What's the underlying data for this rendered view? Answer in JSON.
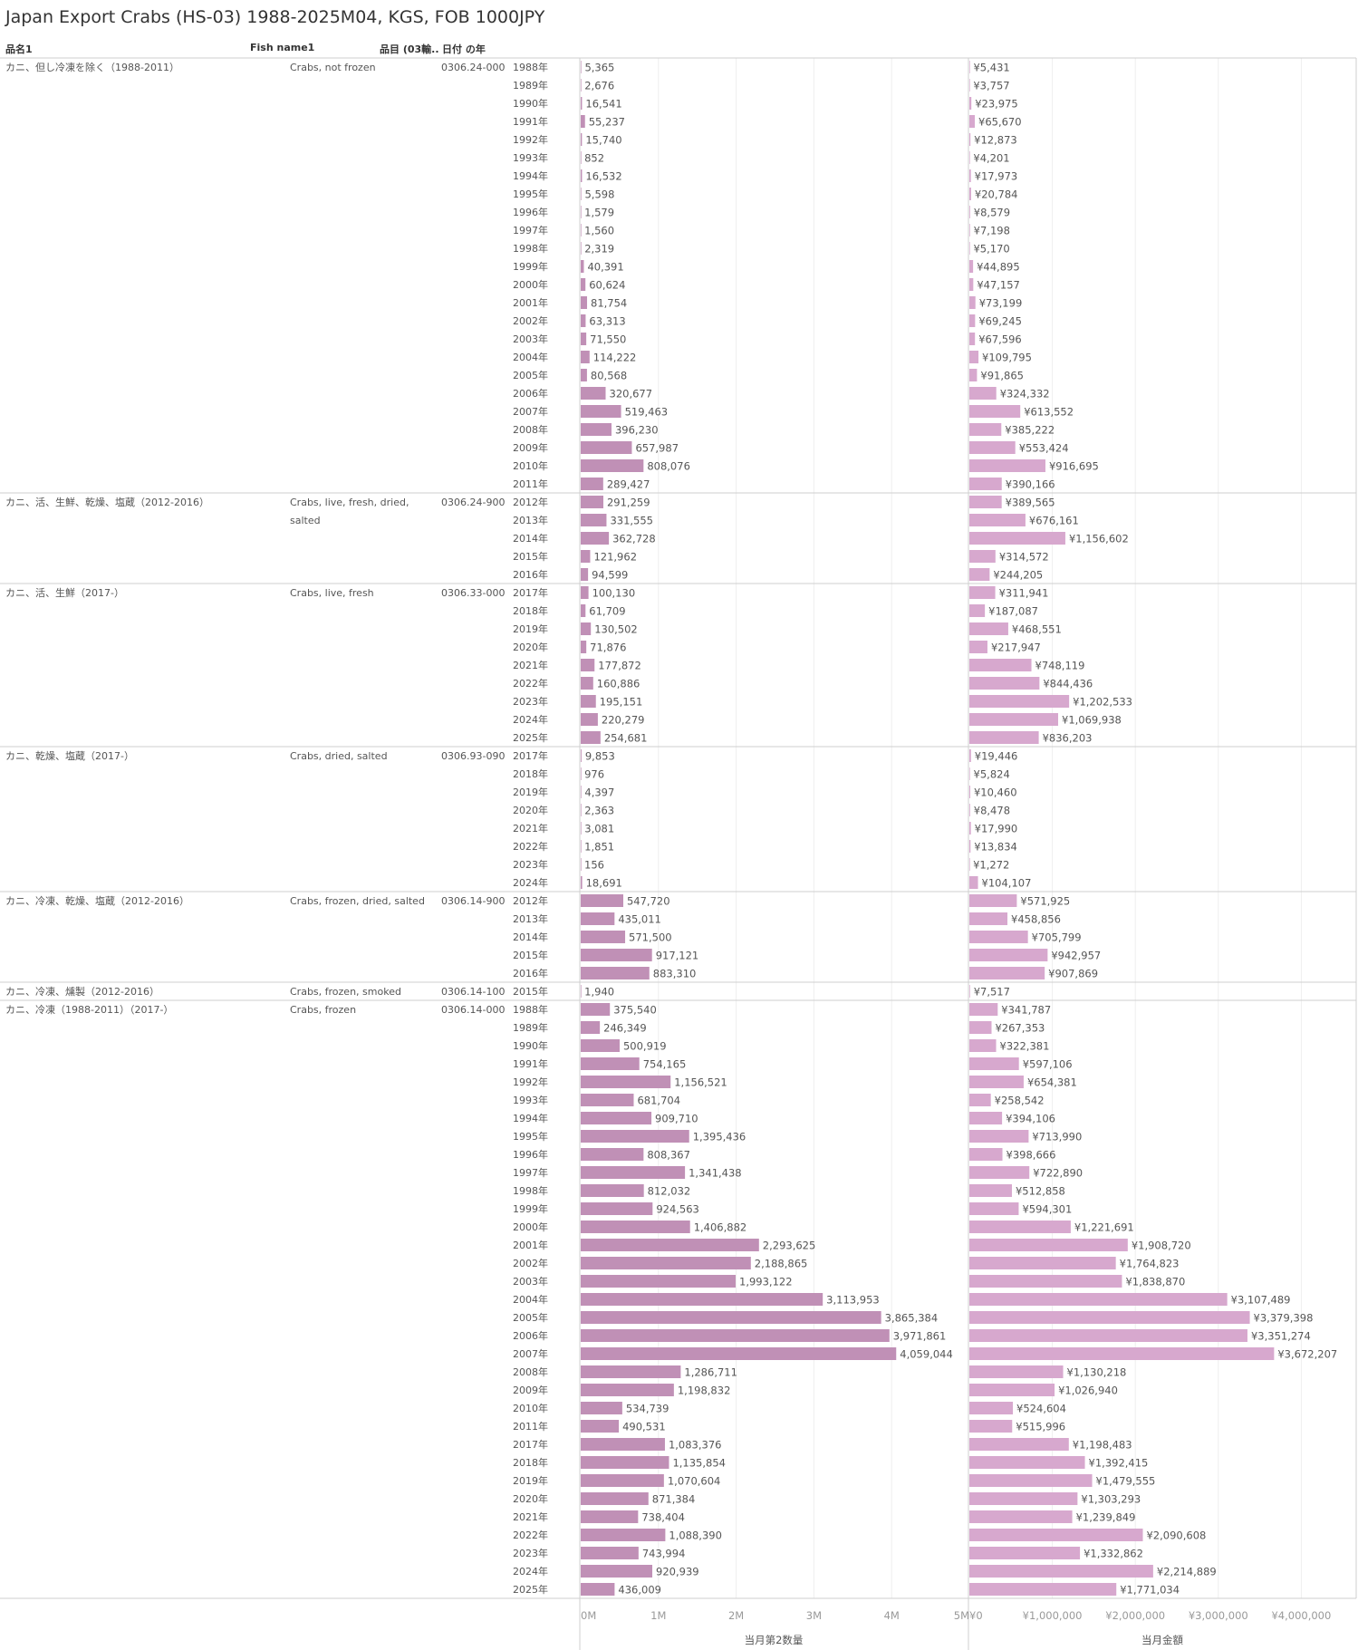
{
  "title": "Japan Export Crabs (HS-03) 1988-2025M04, KGS, FOB 1000JPY",
  "headers": {
    "col1": "品名1",
    "col2": "Fish name1",
    "col3": "品目 (03輸..",
    "col4": "日付 の年"
  },
  "chart_data": {
    "type": "bar",
    "orientation": "horizontal",
    "measures": [
      {
        "name": "当月第2数量",
        "axis_ticks": [
          "0M",
          "1M",
          "2M",
          "3M",
          "4M",
          "5M"
        ],
        "xlim": [
          0,
          5000000
        ]
      },
      {
        "name": "当月金額",
        "axis_ticks": [
          "¥0",
          "¥1,000,000",
          "¥2,000,000",
          "¥3,000,000",
          "¥4,000,000"
        ],
        "xlim": [
          0,
          4650000
        ]
      }
    ],
    "colors": {
      "quantity": "#c090b6",
      "amount": "#d7a8ce"
    },
    "groups": [
      {
        "name_jp": "カニ、但し冷凍を除く（1988-2011）",
        "name_en": "Crabs, not frozen",
        "code": "0306.24-000",
        "rows": [
          {
            "year": "1988年",
            "qty": "5,365",
            "amt": "¥5,431"
          },
          {
            "year": "1989年",
            "qty": "2,676",
            "amt": "¥3,757"
          },
          {
            "year": "1990年",
            "qty": "16,541",
            "amt": "¥23,975"
          },
          {
            "year": "1991年",
            "qty": "55,237",
            "amt": "¥65,670"
          },
          {
            "year": "1992年",
            "qty": "15,740",
            "amt": "¥12,873"
          },
          {
            "year": "1993年",
            "qty": "852",
            "amt": "¥4,201"
          },
          {
            "year": "1994年",
            "qty": "16,532",
            "amt": "¥17,973"
          },
          {
            "year": "1995年",
            "qty": "5,598",
            "amt": "¥20,784"
          },
          {
            "year": "1996年",
            "qty": "1,579",
            "amt": "¥8,579"
          },
          {
            "year": "1997年",
            "qty": "1,560",
            "amt": "¥7,198"
          },
          {
            "year": "1998年",
            "qty": "2,319",
            "amt": "¥5,170"
          },
          {
            "year": "1999年",
            "qty": "40,391",
            "amt": "¥44,895"
          },
          {
            "year": "2000年",
            "qty": "60,624",
            "amt": "¥47,157"
          },
          {
            "year": "2001年",
            "qty": "81,754",
            "amt": "¥73,199"
          },
          {
            "year": "2002年",
            "qty": "63,313",
            "amt": "¥69,245"
          },
          {
            "year": "2003年",
            "qty": "71,550",
            "amt": "¥67,596"
          },
          {
            "year": "2004年",
            "qty": "114,222",
            "amt": "¥109,795"
          },
          {
            "year": "2005年",
            "qty": "80,568",
            "amt": "¥91,865"
          },
          {
            "year": "2006年",
            "qty": "320,677",
            "amt": "¥324,332"
          },
          {
            "year": "2007年",
            "qty": "519,463",
            "amt": "¥613,552"
          },
          {
            "year": "2008年",
            "qty": "396,230",
            "amt": "¥385,222"
          },
          {
            "year": "2009年",
            "qty": "657,987",
            "amt": "¥553,424"
          },
          {
            "year": "2010年",
            "qty": "808,076",
            "amt": "¥916,695"
          },
          {
            "year": "2011年",
            "qty": "289,427",
            "amt": "¥390,166"
          }
        ]
      },
      {
        "name_jp": "カニ、活、生鮮、乾燥、塩蔵（2012-2016）",
        "name_en": "Crabs, live, fresh, dried, salted",
        "code": "0306.24-900",
        "rows": [
          {
            "year": "2012年",
            "qty": "291,259",
            "amt": "¥389,565"
          },
          {
            "year": "2013年",
            "qty": "331,555",
            "amt": "¥676,161"
          },
          {
            "year": "2014年",
            "qty": "362,728",
            "amt": "¥1,156,602"
          },
          {
            "year": "2015年",
            "qty": "121,962",
            "amt": "¥314,572"
          },
          {
            "year": "2016年",
            "qty": "94,599",
            "amt": "¥244,205"
          }
        ]
      },
      {
        "name_jp": "カニ、活、生鮮（2017-）",
        "name_en": "Crabs, live, fresh",
        "code": "0306.33-000",
        "rows": [
          {
            "year": "2017年",
            "qty": "100,130",
            "amt": "¥311,941"
          },
          {
            "year": "2018年",
            "qty": "61,709",
            "amt": "¥187,087"
          },
          {
            "year": "2019年",
            "qty": "130,502",
            "amt": "¥468,551"
          },
          {
            "year": "2020年",
            "qty": "71,876",
            "amt": "¥217,947"
          },
          {
            "year": "2021年",
            "qty": "177,872",
            "amt": "¥748,119"
          },
          {
            "year": "2022年",
            "qty": "160,886",
            "amt": "¥844,436"
          },
          {
            "year": "2023年",
            "qty": "195,151",
            "amt": "¥1,202,533"
          },
          {
            "year": "2024年",
            "qty": "220,279",
            "amt": "¥1,069,938"
          },
          {
            "year": "2025年",
            "qty": "254,681",
            "amt": "¥836,203"
          }
        ]
      },
      {
        "name_jp": "カニ、乾燥、塩蔵（2017-）",
        "name_en": "Crabs, dried, salted",
        "code": "0306.93-090",
        "rows": [
          {
            "year": "2017年",
            "qty": "9,853",
            "amt": "¥19,446"
          },
          {
            "year": "2018年",
            "qty": "976",
            "amt": "¥5,824"
          },
          {
            "year": "2019年",
            "qty": "4,397",
            "amt": "¥10,460"
          },
          {
            "year": "2020年",
            "qty": "2,363",
            "amt": "¥8,478"
          },
          {
            "year": "2021年",
            "qty": "3,081",
            "amt": "¥17,990"
          },
          {
            "year": "2022年",
            "qty": "1,851",
            "amt": "¥13,834"
          },
          {
            "year": "2023年",
            "qty": "156",
            "amt": "¥1,272"
          },
          {
            "year": "2024年",
            "qty": "18,691",
            "amt": "¥104,107"
          }
        ]
      },
      {
        "name_jp": "カニ、冷凍、乾燥、塩蔵（2012-2016）",
        "name_en": "Crabs, frozen, dried, salted",
        "code": "0306.14-900",
        "rows": [
          {
            "year": "2012年",
            "qty": "547,720",
            "amt": "¥571,925"
          },
          {
            "year": "2013年",
            "qty": "435,011",
            "amt": "¥458,856"
          },
          {
            "year": "2014年",
            "qty": "571,500",
            "amt": "¥705,799"
          },
          {
            "year": "2015年",
            "qty": "917,121",
            "amt": "¥942,957"
          },
          {
            "year": "2016年",
            "qty": "883,310",
            "amt": "¥907,869"
          }
        ]
      },
      {
        "name_jp": "カニ、冷凍、燻製（2012-2016）",
        "name_en": "Crabs, frozen, smoked",
        "code": "0306.14-100",
        "rows": [
          {
            "year": "2015年",
            "qty": "1,940",
            "amt": "¥7,517"
          }
        ]
      },
      {
        "name_jp": "カニ、冷凍（1988-2011）（2017-）",
        "name_en": "Crabs, frozen",
        "code": "0306.14-000",
        "rows": [
          {
            "year": "1988年",
            "qty": "375,540",
            "amt": "¥341,787"
          },
          {
            "year": "1989年",
            "qty": "246,349",
            "amt": "¥267,353"
          },
          {
            "year": "1990年",
            "qty": "500,919",
            "amt": "¥322,381"
          },
          {
            "year": "1991年",
            "qty": "754,165",
            "amt": "¥597,106"
          },
          {
            "year": "1992年",
            "qty": "1,156,521",
            "amt": "¥654,381"
          },
          {
            "year": "1993年",
            "qty": "681,704",
            "amt": "¥258,542"
          },
          {
            "year": "1994年",
            "qty": "909,710",
            "amt": "¥394,106"
          },
          {
            "year": "1995年",
            "qty": "1,395,436",
            "amt": "¥713,990"
          },
          {
            "year": "1996年",
            "qty": "808,367",
            "amt": "¥398,666"
          },
          {
            "year": "1997年",
            "qty": "1,341,438",
            "amt": "¥722,890"
          },
          {
            "year": "1998年",
            "qty": "812,032",
            "amt": "¥512,858"
          },
          {
            "year": "1999年",
            "qty": "924,563",
            "amt": "¥594,301"
          },
          {
            "year": "2000年",
            "qty": "1,406,882",
            "amt": "¥1,221,691"
          },
          {
            "year": "2001年",
            "qty": "2,293,625",
            "amt": "¥1,908,720"
          },
          {
            "year": "2002年",
            "qty": "2,188,865",
            "amt": "¥1,764,823"
          },
          {
            "year": "2003年",
            "qty": "1,993,122",
            "amt": "¥1,838,870"
          },
          {
            "year": "2004年",
            "qty": "3,113,953",
            "amt": "¥3,107,489"
          },
          {
            "year": "2005年",
            "qty": "3,865,384",
            "amt": "¥3,379,398"
          },
          {
            "year": "2006年",
            "qty": "3,971,861",
            "amt": "¥3,351,274"
          },
          {
            "year": "2007年",
            "qty": "4,059,044",
            "amt": "¥3,672,207"
          },
          {
            "year": "2008年",
            "qty": "1,286,711",
            "amt": "¥1,130,218"
          },
          {
            "year": "2009年",
            "qty": "1,198,832",
            "amt": "¥1,026,940"
          },
          {
            "year": "2010年",
            "qty": "534,739",
            "amt": "¥524,604"
          },
          {
            "year": "2011年",
            "qty": "490,531",
            "amt": "¥515,996"
          },
          {
            "year": "2017年",
            "qty": "1,083,376",
            "amt": "¥1,198,483"
          },
          {
            "year": "2018年",
            "qty": "1,135,854",
            "amt": "¥1,392,415"
          },
          {
            "year": "2019年",
            "qty": "1,070,604",
            "amt": "¥1,479,555"
          },
          {
            "year": "2020年",
            "qty": "871,384",
            "amt": "¥1,303,293"
          },
          {
            "year": "2021年",
            "qty": "738,404",
            "amt": "¥1,239,849"
          },
          {
            "year": "2022年",
            "qty": "1,088,390",
            "amt": "¥2,090,608"
          },
          {
            "year": "2023年",
            "qty": "743,994",
            "amt": "¥1,332,862"
          },
          {
            "year": "2024年",
            "qty": "920,939",
            "amt": "¥2,214,889"
          },
          {
            "year": "2025年",
            "qty": "436,009",
            "amt": "¥1,771,034"
          }
        ]
      }
    ]
  }
}
